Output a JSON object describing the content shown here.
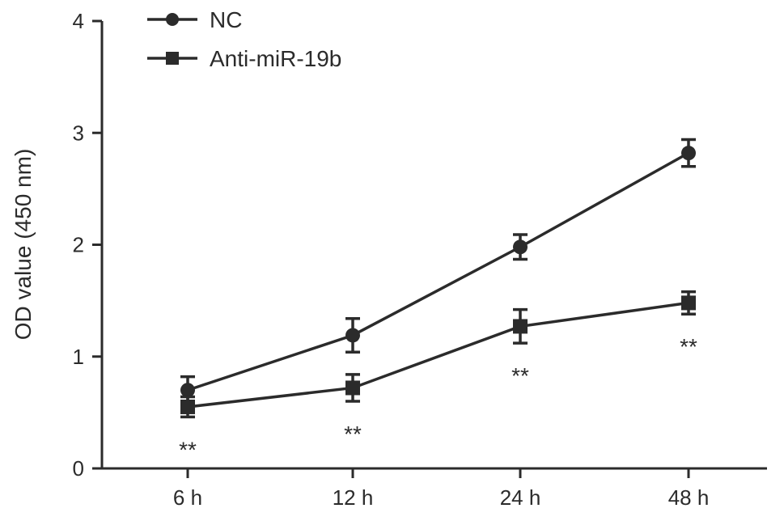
{
  "chart_data": {
    "type": "line",
    "ylabel": "OD value (450 nm)",
    "xlabel": "",
    "categories": [
      "6 h",
      "12 h",
      "24 h",
      "48 h"
    ],
    "ylim": [
      0,
      4
    ],
    "yticks": [
      "0",
      "1",
      "2",
      "3",
      "4"
    ],
    "grid": false,
    "legend_position": "top-left",
    "series": [
      {
        "name": "NC",
        "marker": "circle",
        "values": [
          0.7,
          1.19,
          1.98,
          2.82
        ],
        "errors": [
          0.12,
          0.15,
          0.11,
          0.12
        ]
      },
      {
        "name": "Anti-miR-19b",
        "marker": "square",
        "values": [
          0.55,
          0.72,
          1.27,
          1.48
        ],
        "errors": [
          0.09,
          0.12,
          0.15,
          0.1
        ]
      }
    ],
    "annotations": [
      "**",
      "**",
      "**",
      "**"
    ],
    "color": "#2b2b2b"
  }
}
